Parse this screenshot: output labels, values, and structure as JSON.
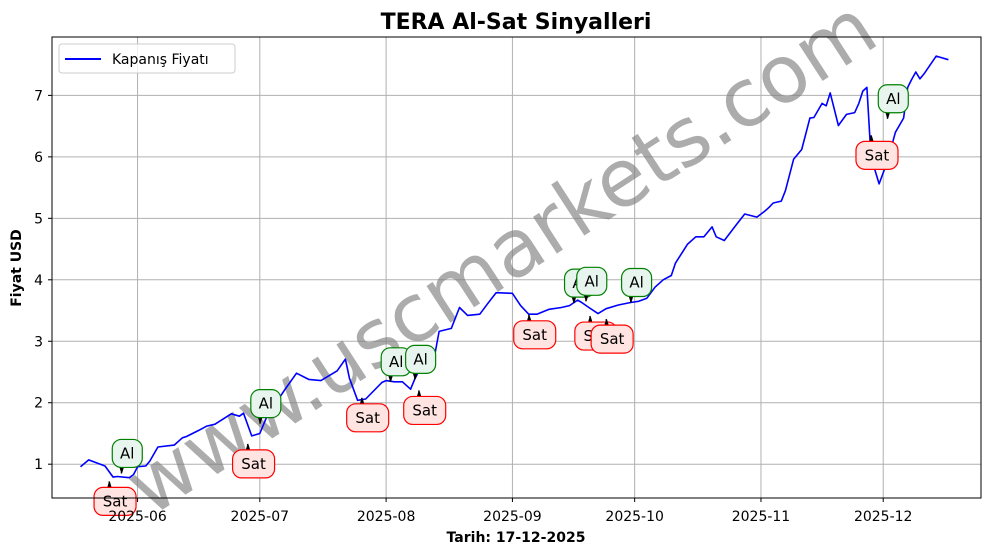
{
  "chart_data": {
    "type": "line",
    "title": "TERA Al-Sat Sinyalleri",
    "xlabel": "Tarih: 17-12-2025",
    "ylabel": "Fiyat USD",
    "x_range": [
      "2025-05-11",
      "2025-12-25"
    ],
    "ylim": [
      0.45,
      7.95
    ],
    "x_ticks": [
      "2025-06-01",
      "2025-07-01",
      "2025-08-01",
      "2025-09-01",
      "2025-10-01",
      "2025-11-01",
      "2025-12-01"
    ],
    "x_tick_labels": [
      "2025-06",
      "2025-07",
      "2025-08",
      "2025-09",
      "2025-10",
      "2025-11",
      "2025-12"
    ],
    "y_ticks": [
      1,
      2,
      3,
      4,
      5,
      6,
      7
    ],
    "y_tick_labels": [
      "1",
      "2",
      "3",
      "4",
      "5",
      "6",
      "7"
    ],
    "grid": true,
    "legend_position": "top-left",
    "series": [
      {
        "name": "Kapanış Fiyatı",
        "color": "#0000ff",
        "x": [
          "2025-05-18",
          "2025-05-20",
          "2025-05-24",
          "2025-05-26",
          "2025-05-27",
          "2025-05-30",
          "2025-05-31",
          "2025-06-01",
          "2025-06-03",
          "2025-06-04",
          "2025-06-06",
          "2025-06-10",
          "2025-06-12",
          "2025-06-13",
          "2025-06-16",
          "2025-06-18",
          "2025-06-20",
          "2025-06-24",
          "2025-06-26",
          "2025-06-27",
          "2025-06-29",
          "2025-07-01",
          "2025-07-03",
          "2025-07-05",
          "2025-07-07",
          "2025-07-10",
          "2025-07-13",
          "2025-07-16",
          "2025-07-20",
          "2025-07-22",
          "2025-07-23",
          "2025-07-25",
          "2025-07-27",
          "2025-07-31",
          "2025-08-01",
          "2025-08-03",
          "2025-08-05",
          "2025-08-07",
          "2025-08-08",
          "2025-08-09",
          "2025-08-11",
          "2025-08-13",
          "2025-08-14",
          "2025-08-17",
          "2025-08-19",
          "2025-08-21",
          "2025-08-24",
          "2025-08-26",
          "2025-08-28",
          "2025-09-01",
          "2025-09-03",
          "2025-09-05",
          "2025-09-07",
          "2025-09-10",
          "2025-09-13",
          "2025-09-15",
          "2025-09-17",
          "2025-09-18",
          "2025-09-20",
          "2025-09-22",
          "2025-09-24",
          "2025-09-27",
          "2025-09-30",
          "2025-10-02",
          "2025-10-04",
          "2025-10-06",
          "2025-10-08",
          "2025-10-10",
          "2025-10-11",
          "2025-10-14",
          "2025-10-16",
          "2025-10-18",
          "2025-10-20",
          "2025-10-21",
          "2025-10-23",
          "2025-10-26",
          "2025-10-28",
          "2025-10-31",
          "2025-11-02",
          "2025-11-03",
          "2025-11-04",
          "2025-11-06",
          "2025-11-07",
          "2025-11-09",
          "2025-11-11",
          "2025-11-13",
          "2025-11-14",
          "2025-11-16",
          "2025-11-17",
          "2025-11-18",
          "2025-11-20",
          "2025-11-22",
          "2025-11-24",
          "2025-11-25",
          "2025-11-26",
          "2025-11-27",
          "2025-11-28",
          "2025-11-30",
          "2025-12-02",
          "2025-12-04",
          "2025-12-06",
          "2025-12-07",
          "2025-12-08",
          "2025-12-09",
          "2025-12-10",
          "2025-12-11",
          "2025-12-14",
          "2025-12-17"
        ],
        "values": [
          0.96,
          1.07,
          0.97,
          0.79,
          0.8,
          0.78,
          0.83,
          0.96,
          0.97,
          1.05,
          1.28,
          1.31,
          1.43,
          1.45,
          1.55,
          1.62,
          1.65,
          1.82,
          1.78,
          1.83,
          1.46,
          1.5,
          1.82,
          2.0,
          2.2,
          2.48,
          2.38,
          2.36,
          2.52,
          2.71,
          2.4,
          2.04,
          2.06,
          2.33,
          2.36,
          2.34,
          2.34,
          2.22,
          2.38,
          2.51,
          2.65,
          2.8,
          3.16,
          3.21,
          3.55,
          3.42,
          3.44,
          3.62,
          3.79,
          3.78,
          3.58,
          3.44,
          3.44,
          3.52,
          3.55,
          3.58,
          3.67,
          3.63,
          3.54,
          3.45,
          3.53,
          3.59,
          3.63,
          3.65,
          3.7,
          3.88,
          4.0,
          4.07,
          4.27,
          4.58,
          4.7,
          4.7,
          4.86,
          4.7,
          4.64,
          4.9,
          5.07,
          5.02,
          5.12,
          5.18,
          5.25,
          5.28,
          5.45,
          5.96,
          6.12,
          6.63,
          6.64,
          6.87,
          6.83,
          7.04,
          6.51,
          6.69,
          6.72,
          6.87,
          7.07,
          7.13,
          6.0,
          5.56,
          5.92,
          6.4,
          6.63,
          7.13,
          7.26,
          7.38,
          7.27,
          7.35,
          7.64,
          7.58
        ]
      }
    ],
    "signals": [
      {
        "label": "Al",
        "date": "2025-05-28",
        "price": 0.85,
        "type": "buy"
      },
      {
        "label": "Sat",
        "date": "2025-05-25",
        "price": 0.72,
        "type": "sell"
      },
      {
        "label": "Sat",
        "date": "2025-06-28",
        "price": 1.33,
        "type": "sell"
      },
      {
        "label": "Al",
        "date": "2025-07-01",
        "price": 1.66,
        "type": "buy"
      },
      {
        "label": "Sat",
        "date": "2025-07-26",
        "price": 2.08,
        "type": "sell"
      },
      {
        "label": "Al",
        "date": "2025-08-02",
        "price": 2.34,
        "type": "buy"
      },
      {
        "label": "Al",
        "date": "2025-08-08",
        "price": 2.38,
        "type": "buy"
      },
      {
        "label": "Sat",
        "date": "2025-08-09",
        "price": 2.2,
        "type": "sell"
      },
      {
        "label": "Sat",
        "date": "2025-09-05",
        "price": 3.43,
        "type": "sell"
      },
      {
        "label": "Al",
        "date": "2025-09-16",
        "price": 3.62,
        "type": "buy"
      },
      {
        "label": "Al",
        "date": "2025-09-19",
        "price": 3.65,
        "type": "buy"
      },
      {
        "label": "Sat",
        "date": "2025-09-20",
        "price": 3.41,
        "type": "sell"
      },
      {
        "label": "Sat",
        "date": "2025-09-24",
        "price": 3.36,
        "type": "sell"
      },
      {
        "label": "Al",
        "date": "2025-09-30",
        "price": 3.63,
        "type": "buy"
      },
      {
        "label": "Sat",
        "date": "2025-11-28",
        "price": 6.35,
        "type": "sell"
      },
      {
        "label": "Al",
        "date": "2025-12-02",
        "price": 6.62,
        "type": "buy"
      }
    ],
    "watermark": "www.uscmarkets.com",
    "colors": {
      "line": "#0000ff",
      "buy_edge": "#008000",
      "buy_fill": "#e8f5ef",
      "sell_edge": "#ff0000",
      "sell_fill": "#ffe4e1",
      "grid": "#b0b0b0"
    }
  }
}
